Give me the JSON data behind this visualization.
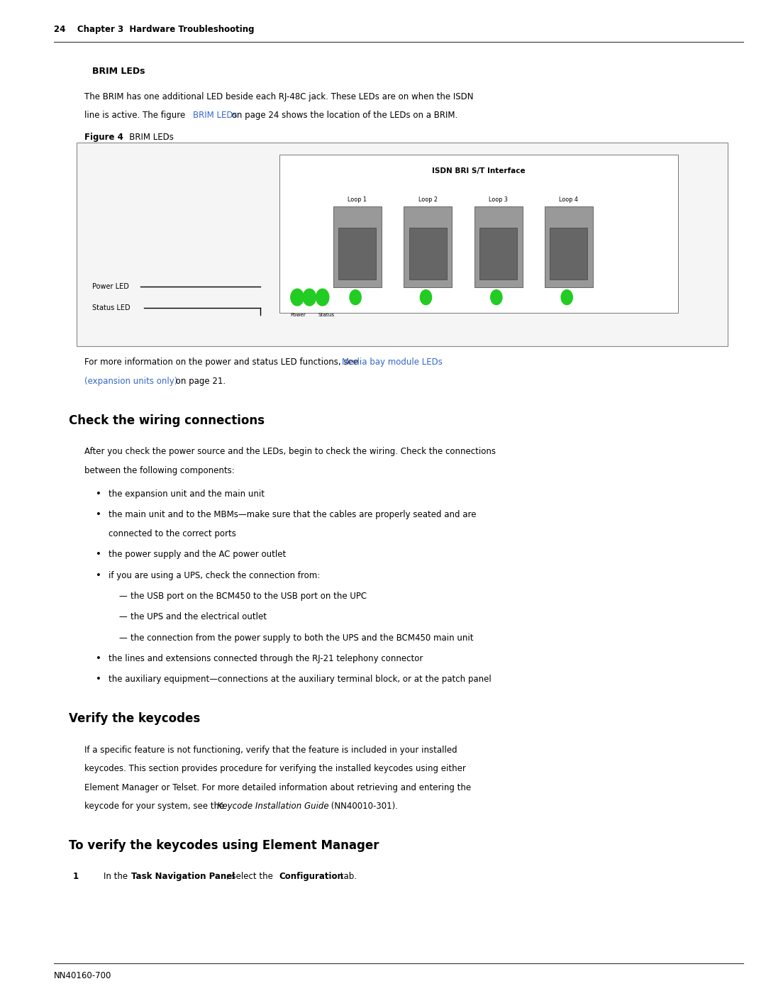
{
  "page_width": 10.8,
  "page_height": 13.97,
  "bg_color": "#ffffff",
  "header_text": "24    Chapter 3  Hardware Troubleshooting",
  "section1_title": "BRIM LEDs",
  "section1_body1": "The BRIM has one additional LED beside each RJ-48C jack. These LEDs are on when the ISDN",
  "section1_body2": "line is active. The figure ",
  "section1_link1": "BRIM LEDs",
  "section1_body3": " on page 24 shows the location of the LEDs on a BRIM.",
  "figure_label_bold": "Figure 4",
  "figure_label_normal": "   BRIM LEDs",
  "figure_caption1": "For more information on the power and status LED functions, see ",
  "figure_link1": "Media bay module LEDs",
  "figure_link2": "(expansion units only)",
  "figure_caption2": " on page 21.",
  "section2_title": "Check the wiring connections",
  "section2_body1": "After you check the power source and the LEDs, begin to check the wiring. Check the connections",
  "section2_body2": "between the following components:",
  "bullet1": "the expansion unit and the main unit",
  "bullet2_line1": "the main unit and to the MBMs—make sure that the cables are properly seated and are",
  "bullet2_line2": "connected to the correct ports",
  "bullet3": "the power supply and the AC power outlet",
  "bullet4": "if you are using a UPS, check the connection from:",
  "sub1": "the USB port on the BCM450 to the USB port on the UPC",
  "sub2": "the UPS and the electrical outlet",
  "sub3": "the connection from the power supply to both the UPS and the BCM450 main unit",
  "bullet5": "the lines and extensions connected through the RJ-21 telephony connector",
  "bullet6": "the auxiliary equipment—connections at the auxiliary terminal block, or at the patch panel",
  "section3_title": "Verify the keycodes",
  "section3_body1": "If a specific feature is not functioning, verify that the feature is included in your installed",
  "section3_body2": "keycodes. This section provides procedure for verifying the installed keycodes using either",
  "section3_body3": "Element Manager or Telset. For more detailed information about retrieving and entering the",
  "section3_body4_pre": "keycode for your system, see the ",
  "section3_italic": "Keycode Installation Guide",
  "section3_body4_post": " (NN40010-301).",
  "section4_title": "To verify the keycodes using Element Manager",
  "step1_text1": "In the ",
  "step1_bold1": "Task Navigation Panel",
  "step1_text2": ", select the ",
  "step1_bold2": "Configuration",
  "step1_text3": " tab.",
  "footer_text": "NN40160-700",
  "link_color": "#3366cc",
  "text_color": "#000000",
  "header_number_color": "#000000",
  "isdn_label": "ISDN BRI S/T Interface",
  "loop_labels": [
    "Loop 1",
    "Loop 2",
    "Loop 3",
    "Loop 4"
  ],
  "power_label": "Power",
  "status_label": "Status",
  "power_led_label": "Power LED",
  "status_led_label": "Status LED"
}
